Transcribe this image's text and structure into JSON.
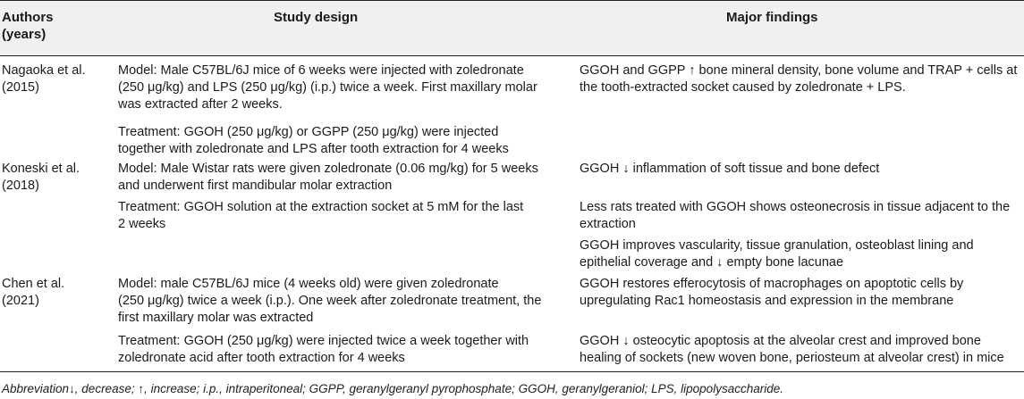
{
  "table": {
    "headers": {
      "authors": "Authors\n(years)",
      "design": "Study design",
      "findings": "Major findings"
    },
    "rows": [
      {
        "author": "Nagaoka et al.\n(2015)",
        "design": [
          "Model: Male C57BL/6J mice of 6 weeks were injected with zoledronate\n(250 μg/kg) and LPS (250 μg/kg) (i.p.) twice a week. First maxillary molar\nwas extracted after 2 weeks.",
          "Treatment: GGOH (250 μg/kg) or GGPP (250 μg/kg) were injected\ntogether with zoledronate and LPS after tooth extraction for 4 weeks"
        ],
        "findings": [
          "GGOH and GGPP ↑ bone mineral density, bone volume and TRAP + cells at\nthe tooth-extracted socket caused by zoledronate + LPS."
        ]
      },
      {
        "author": "Koneski et al.\n(2018)",
        "design": [
          "Model: Male Wistar rats were given zoledronate (0.06 mg/kg) for 5 weeks\nand underwent first mandibular molar extraction",
          "Treatment: GGOH solution at the extraction socket at 5 mM for the last\n2 weeks"
        ],
        "findings": [
          "GGOH ↓ inflammation of soft tissue and bone defect",
          "Less rats treated with GGOH shows osteonecrosis in tissue adjacent to the\nextraction",
          "GGOH improves vascularity, tissue granulation, osteoblast lining and\nepithelial coverage and ↓ empty bone lacunae"
        ]
      },
      {
        "author": "Chen et al.\n(2021)",
        "design": [
          "Model: male C57BL/6J mice (4 weeks old) were given zoledronate\n(250 μg/kg) twice a week (i.p.). One week after zoledronate treatment, the\nfirst maxillary molar was extracted",
          "Treatment: GGOH (250 μg/kg) were injected twice a week together with\nzoledronate acid after tooth extraction for 4 weeks"
        ],
        "findings": [
          "GGOH restores efferocytosis of macrophages on apoptotic cells by\nupregulating Rac1 homeostasis and expression in the membrane",
          "GGOH ↓ osteocytic apoptosis at the alveolar crest and improved bone\nhealing of sockets (new woven bone, periosteum at alveolar crest) in mice"
        ]
      }
    ]
  },
  "footnote": "Abbreviation↓, decrease; ↑, increase; i.p., intraperitoneal; GGPP, geranylgeranyl pyrophosphate; GGOH, geranylgeraniol; LPS, lipopolysaccharide."
}
